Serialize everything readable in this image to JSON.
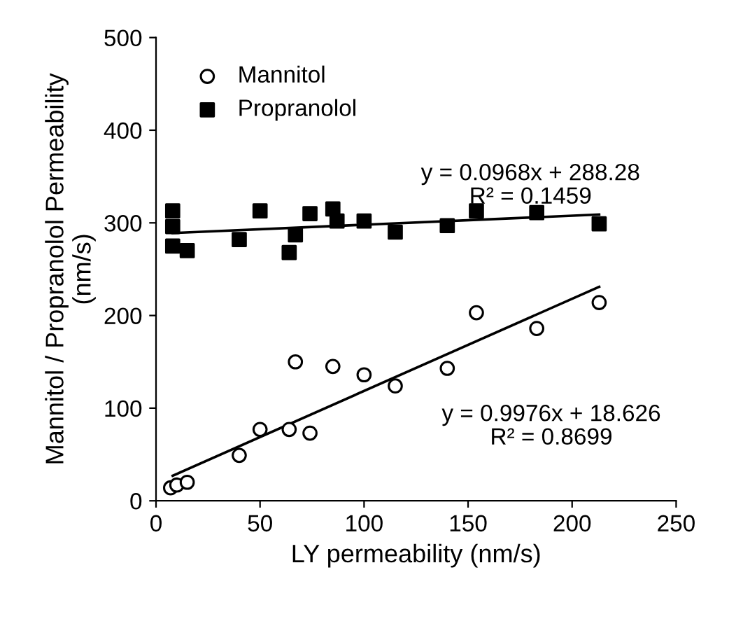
{
  "chart_data": {
    "type": "scatter",
    "xlabel": "LY permeability (nm/s)",
    "ylabel": "Mannitol / Propranolol Permeability\n(nm/s)",
    "series": [
      {
        "name": "Mannitol",
        "color": "#000000",
        "marker": "circle",
        "x": [
          7,
          10,
          15,
          40,
          50,
          64,
          67,
          74,
          85,
          100,
          115,
          140,
          154,
          183,
          213
        ],
        "values": [
          14,
          17,
          20,
          49,
          77,
          77,
          150,
          73,
          145,
          136,
          124,
          143,
          203,
          186,
          214
        ]
      },
      {
        "name": "Propranolol",
        "color": "#000000",
        "marker": "square",
        "x": [
          8,
          8,
          8,
          15,
          40,
          50,
          64,
          67,
          74,
          85,
          87,
          100,
          115,
          140,
          154,
          183,
          213
        ],
        "values": [
          313,
          296,
          275,
          270,
          282,
          313,
          268,
          287,
          310,
          315,
          302,
          302,
          290,
          297,
          313,
          311,
          299
        ]
      },
      {
        "type": "line",
        "color": "#000000",
        "x": [
          8,
          213
        ],
        "values": [
          289,
          309
        ]
      },
      {
        "type": "line",
        "color": "#000000",
        "x": [
          8,
          213
        ],
        "values": [
          27,
          231
        ]
      }
    ],
    "annotations": [
      "y = 0.0968x + 288.28\nR² = 0.1459",
      "y = 0.9976x + 18.626\nR² = 0.8699"
    ],
    "xlim": [
      0,
      250
    ],
    "ylim": [
      0,
      500
    ],
    "xticks": [
      0,
      50,
      100,
      150,
      200,
      250
    ],
    "yticks": [
      0,
      100,
      200,
      300,
      400,
      500
    ],
    "legend": "top left",
    "grid": false
  }
}
